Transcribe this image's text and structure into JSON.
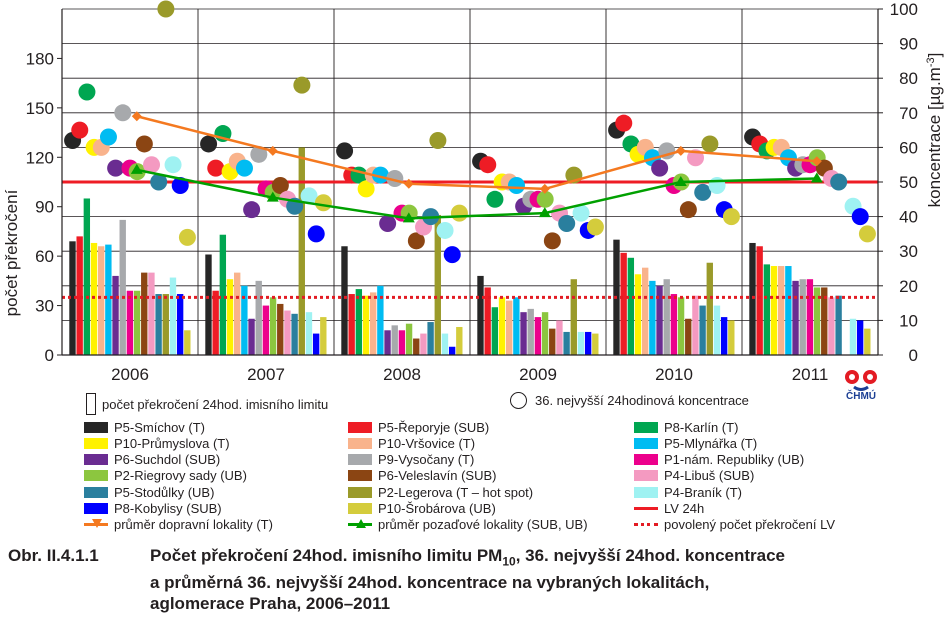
{
  "chart_data": {
    "type": "bar",
    "categories": [
      "2006",
      "2007",
      "2008",
      "2009",
      "2010",
      "2011"
    ],
    "ylabel": "počet překročení",
    "ylabel_right": "koncentrace [µg.m",
    "ylabel_right_sup": "-3",
    "ylabel_right_end": "]",
    "left_axis": {
      "ylim": [
        0,
        210
      ],
      "ticks": [
        0,
        30,
        60,
        90,
        120,
        150,
        180
      ]
    },
    "right_axis": {
      "ylim": [
        0,
        100
      ],
      "ticks": [
        0,
        10,
        20,
        30,
        40,
        50,
        60,
        70,
        80,
        90,
        100
      ]
    },
    "grid": true,
    "station_names": [
      "P5-Smíchov (T)",
      "P5-Řeporyje (SUB)",
      "P8-Karlín (T)",
      "P10-Průmyslova (T)",
      "P10-Vršovice (T)",
      "P5-Mlynářka (T)",
      "P6-Suchdol (SUB)",
      "P9-Vysočany (T)",
      "P1-nám. Republiky (UB)",
      "P2-Riegrovy sady (UB)",
      "P6-Veleslavín (SUB)",
      "P4-Libuš (SUB)",
      "P5-Stodůlky (UB)",
      "P2-Legerova (T – hot spot)",
      "P4-Braník (T)",
      "P8-Kobylisy (SUB)",
      "P10-Šrobárova (UB)"
    ],
    "station_colors": [
      "#262626",
      "#ee1c25",
      "#00a651",
      "#fff200",
      "#f9b38c",
      "#00bcf2",
      "#6a2c91",
      "#a7a9ac",
      "#ec008c",
      "#8cc63f",
      "#8b4513",
      "#f49ac1",
      "#2a7f9e",
      "#9a9a2a",
      "#9ff2f2",
      "#0000ff",
      "#d4cc3c"
    ],
    "exceedances": [
      [
        69,
        72,
        95,
        68,
        66,
        67,
        48,
        82,
        39,
        39,
        50,
        50,
        37,
        37,
        47,
        37,
        15
      ],
      [
        61,
        39,
        73,
        46,
        50,
        42,
        22,
        45,
        30,
        35,
        31,
        27,
        25,
        126,
        26,
        13,
        23
      ],
      [
        66,
        37,
        40,
        36,
        38,
        42,
        15,
        18,
        15,
        19,
        10,
        13,
        20,
        85,
        13,
        5,
        17
      ],
      [
        48,
        41,
        29,
        35,
        33,
        35,
        26,
        28,
        23,
        26,
        16,
        21,
        14,
        46,
        14,
        14,
        13
      ],
      [
        70,
        62,
        59,
        49,
        53,
        45,
        42,
        46,
        37,
        35,
        22,
        36,
        30,
        56,
        30,
        23,
        21
      ],
      [
        68,
        66,
        55,
        54,
        54,
        54,
        45,
        46,
        46,
        41,
        41,
        35,
        36,
        0,
        22,
        21,
        16
      ]
    ],
    "concentration_36th": [
      [
        62,
        65,
        76,
        60,
        60,
        63,
        54,
        70,
        54,
        53,
        61,
        55,
        50,
        100,
        55,
        49,
        34
      ],
      [
        61,
        54,
        64,
        53,
        56,
        54,
        42,
        58,
        48,
        47,
        49,
        45,
        43,
        78,
        46,
        35,
        44
      ],
      [
        59,
        52,
        52,
        48,
        52,
        52,
        38,
        51,
        41,
        41,
        33,
        37,
        40,
        62,
        36,
        29,
        41
      ],
      [
        56,
        55,
        45,
        50,
        50,
        49,
        43,
        45,
        45,
        45,
        33,
        41,
        38,
        52,
        41,
        36,
        37
      ],
      [
        65,
        67,
        61,
        58,
        60,
        57,
        54,
        59,
        49,
        50,
        42,
        57,
        47,
        61,
        49,
        42,
        40
      ],
      [
        63,
        61,
        59,
        60,
        60,
        57,
        54,
        55,
        55,
        57,
        54,
        51,
        50,
        0,
        43,
        40,
        35
      ]
    ],
    "average_traffic": [
      69,
      59,
      49.5,
      48,
      59,
      56
    ],
    "average_background": [
      53.5,
      45.5,
      39.5,
      41,
      50,
      51
    ],
    "limit_LV_24h": 50,
    "allowed_exceedances": 35
  },
  "legend": {
    "bar_note": "počet překročení 24hod. imisního limitu",
    "circle_note": "36. nejvyšší 24hodinová koncentrace",
    "items": [
      {
        "label": "P5-Smíchov (T)",
        "color": "#262626"
      },
      {
        "label": "P5-Řeporyje (SUB)",
        "color": "#ee1c25"
      },
      {
        "label": "P8-Karlín (T)",
        "color": "#00a651"
      },
      {
        "label": "P10-Průmyslova (T)",
        "color": "#fff200"
      },
      {
        "label": "P10-Vršovice (T)",
        "color": "#f9b38c"
      },
      {
        "label": "P5-Mlynářka (T)",
        "color": "#00bcf2"
      },
      {
        "label": "P6-Suchdol (SUB)",
        "color": "#6a2c91"
      },
      {
        "label": "P9-Vysočany (T)",
        "color": "#a7a9ac"
      },
      {
        "label": "P1-nám. Republiky (UB)",
        "color": "#ec008c"
      },
      {
        "label": "P2-Riegrovy sady (UB)",
        "color": "#8cc63f"
      },
      {
        "label": "P6-Veleslavín (SUB)",
        "color": "#8b4513"
      },
      {
        "label": "P4-Libuš (SUB)",
        "color": "#f49ac1"
      },
      {
        "label": "P5-Stodůlky (UB)",
        "color": "#2a7f9e"
      },
      {
        "label": "P2-Legerova (T – hot spot)",
        "color": "#9a9a2a"
      },
      {
        "label": "P4-Braník (T)",
        "color": "#9ff2f2"
      },
      {
        "label": "P8-Kobylisy (SUB)",
        "color": "#0000ff"
      },
      {
        "label": "P10-Šrobárova (UB)",
        "color": "#d4cc3c"
      },
      {
        "label": "LV 24h",
        "color": "#ee1c25"
      },
      {
        "label": "průměr dopravní lokality (T)",
        "color": "#f47920"
      },
      {
        "label": "průměr pozaďové lokality (SUB, UB)",
        "color": "#00a000"
      },
      {
        "label": "povolený počet překročení LV",
        "color": "#e31b23"
      }
    ]
  },
  "logo": {
    "text": "ČHMÚ"
  },
  "caption": {
    "number": "Obr. II.4.1.1",
    "line1_a": "Počet překročení 24hod. imisního limitu PM",
    "line1_sub": "10",
    "line1_b": ", 36. nejvyšší 24hod. koncentrace",
    "line2": "a průměrná 36. nejvyšší 24hod. koncentrace na vybraných lokalitách,",
    "line3": "aglomerace Praha, 2006–2011"
  }
}
